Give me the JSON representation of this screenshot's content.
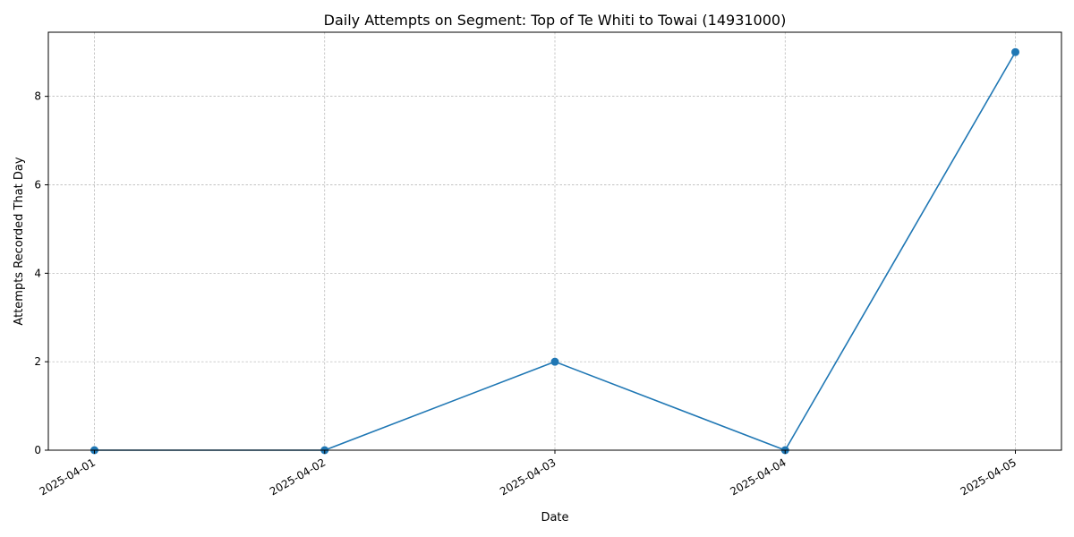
{
  "chart_data": {
    "type": "line",
    "title": "Daily Attempts on Segment: Top of Te Whiti to Towai (14931000)",
    "xlabel": "Date",
    "ylabel": "Attempts Recorded That Day",
    "x": [
      "2025-04-01",
      "2025-04-02",
      "2025-04-03",
      "2025-04-04",
      "2025-04-05"
    ],
    "series": [
      {
        "values": [
          0,
          0,
          2,
          0,
          9
        ],
        "color": "#1f77b4",
        "marker": "circle"
      }
    ],
    "ylim": [
      0,
      9.45
    ],
    "yticks": [
      0,
      2,
      4,
      6,
      8
    ],
    "grid": true,
    "grid_style": "dashed"
  }
}
